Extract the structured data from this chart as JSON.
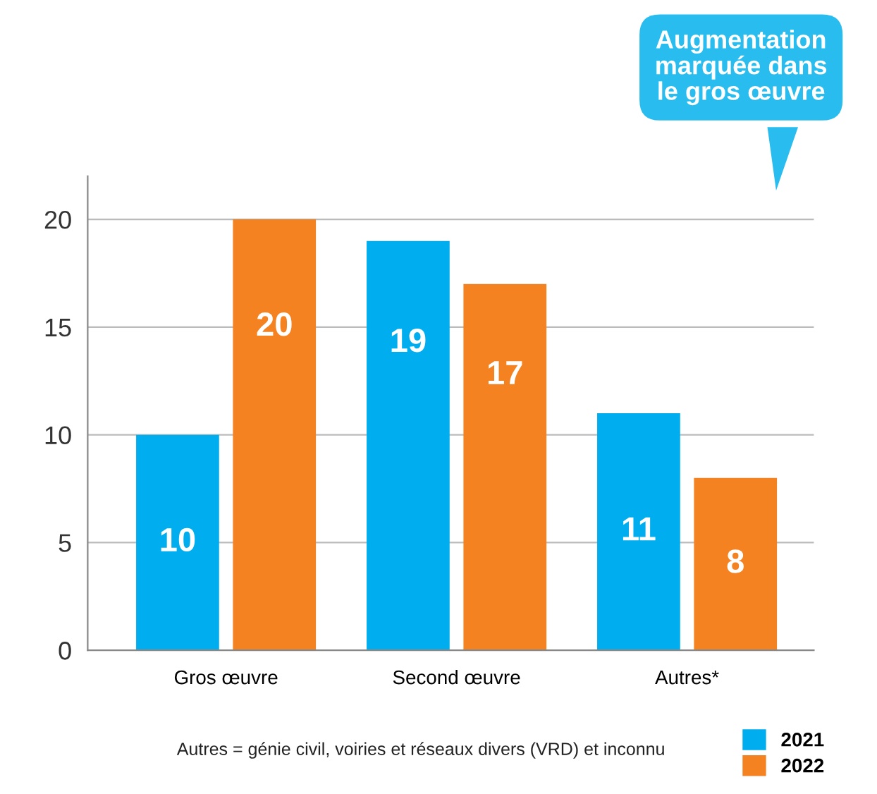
{
  "chart_data": {
    "type": "bar",
    "categories": [
      "Gros œuvre",
      "Second œuvre",
      "Autres*"
    ],
    "series": [
      {
        "name": "2021",
        "color": "#00aeef",
        "values": [
          10,
          19,
          11
        ]
      },
      {
        "name": "2022",
        "color": "#f58220",
        "values": [
          20,
          17,
          8
        ]
      }
    ],
    "ylim": [
      0,
      22
    ],
    "yticks": [
      0,
      5,
      10,
      15,
      20
    ],
    "grid": "y",
    "data_labels": true,
    "legend": "bottom right",
    "annotations": [
      "Augmentation\nmarquée dans\nle gros œuvre",
      "Autres = génie civil, voiries et réseaux divers (VRD) et inconnu"
    ]
  }
}
